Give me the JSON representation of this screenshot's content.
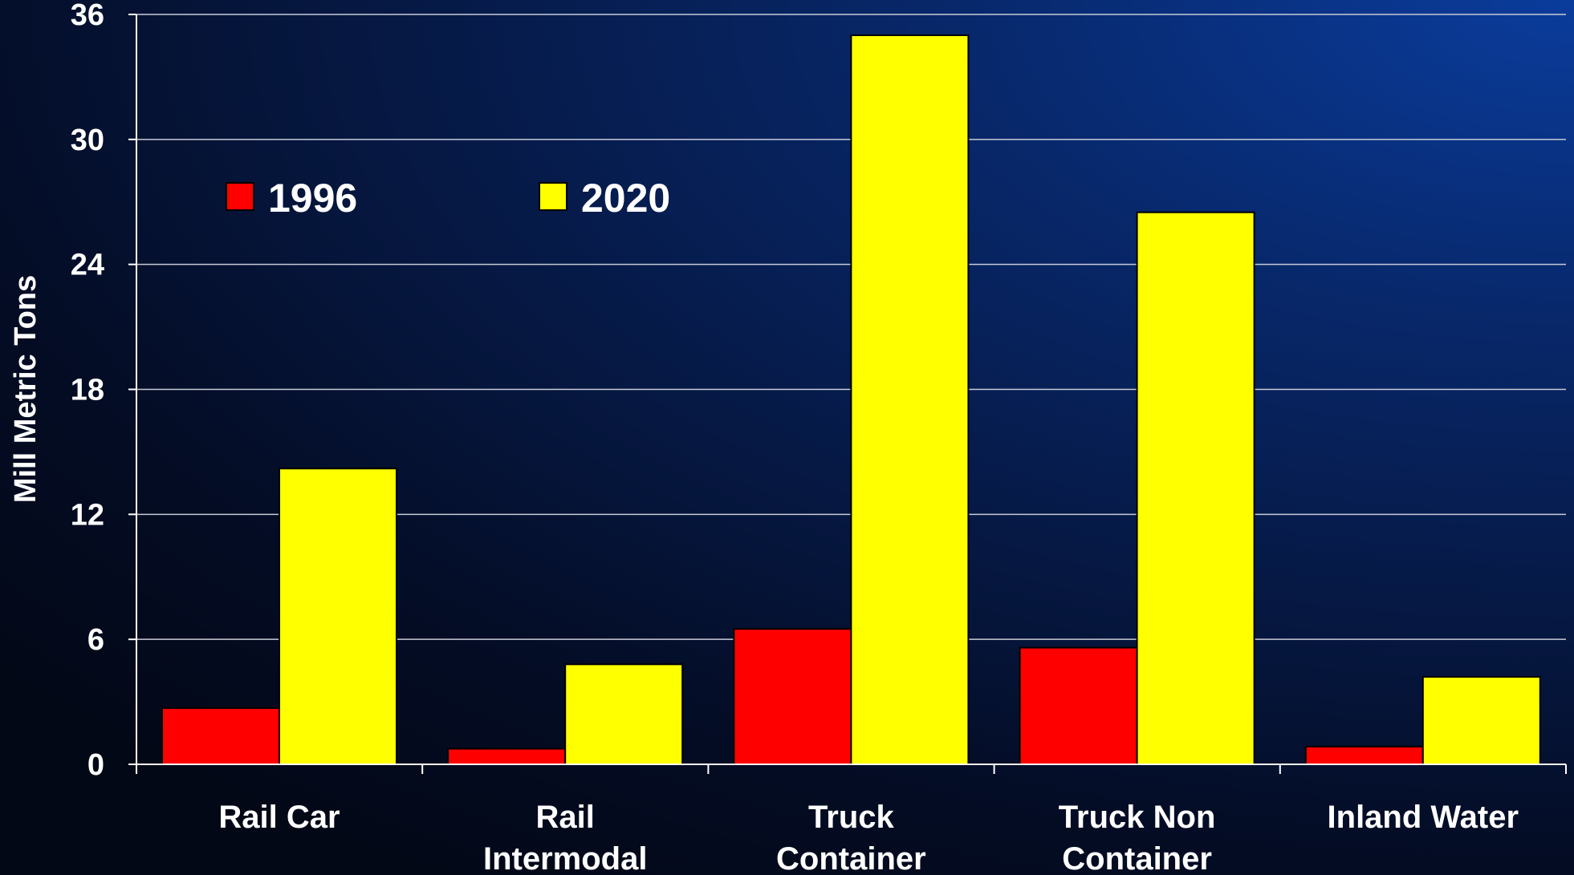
{
  "chart_data": {
    "type": "bar",
    "title": "",
    "xlabel": "",
    "ylabel": "Mill Metric Tons",
    "ylim": [
      0,
      36
    ],
    "yticks": [
      "0",
      "6",
      "12",
      "18",
      "24",
      "30",
      "36"
    ],
    "categories": [
      [
        "Rail Car"
      ],
      [
        "Rail",
        "Intermodal"
      ],
      [
        "Truck",
        "Container"
      ],
      [
        "Truck Non",
        "Container"
      ],
      [
        "Inland Water"
      ]
    ],
    "series": [
      {
        "name": "1996",
        "color": "#ff0000",
        "values": [
          2.7,
          0.75,
          6.5,
          5.6,
          0.85
        ]
      },
      {
        "name": "2020",
        "color": "#ffff00",
        "values": [
          14.2,
          4.8,
          35.0,
          26.5,
          4.2
        ]
      }
    ],
    "grid": true,
    "legend_position": "top-left"
  }
}
